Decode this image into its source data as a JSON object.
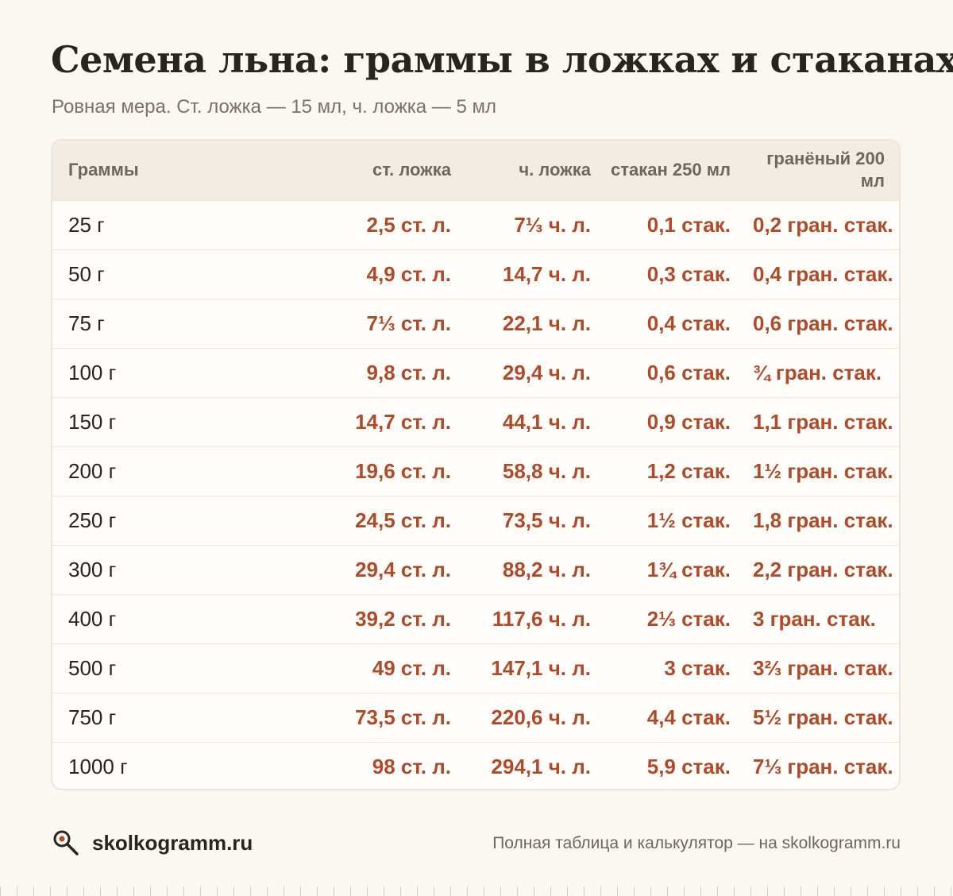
{
  "header": {
    "title": "Семена льна: граммы в ложках и стаканах",
    "subtitle": "Ровная мера. Ст. ложка — 15 мл, ч. ложка — 5 мл"
  },
  "table": {
    "columns": [
      "Граммы",
      "ст. ложка",
      "ч. ложка",
      "стакан 250 мл",
      "гранёный 200 мл"
    ],
    "rows": [
      [
        "25 г",
        "2,5 ст. л.",
        "7⅓ ч. л.",
        "0,1 стак.",
        "0,2 гран. стак."
      ],
      [
        "50 г",
        "4,9 ст. л.",
        "14,7 ч. л.",
        "0,3 стак.",
        "0,4 гран. стак."
      ],
      [
        "75 г",
        "7⅓ ст. л.",
        "22,1 ч. л.",
        "0,4 стак.",
        "0,6 гран. стак."
      ],
      [
        "100 г",
        "9,8 ст. л.",
        "29,4 ч. л.",
        "0,6 стак.",
        "¾ гран. стак."
      ],
      [
        "150 г",
        "14,7 ст. л.",
        "44,1 ч. л.",
        "0,9 стак.",
        "1,1 гран. стак."
      ],
      [
        "200 г",
        "19,6 ст. л.",
        "58,8 ч. л.",
        "1,2 стак.",
        "1½ гран. стак."
      ],
      [
        "250 г",
        "24,5 ст. л.",
        "73,5 ч. л.",
        "1½ стак.",
        "1,8 гран. стак."
      ],
      [
        "300 г",
        "29,4 ст. л.",
        "88,2 ч. л.",
        "1¾ стак.",
        "2,2 гран. стак."
      ],
      [
        "400 г",
        "39,2 ст. л.",
        "117,6 ч. л.",
        "2⅓ стак.",
        "3 гран. стак."
      ],
      [
        "500 г",
        "49 ст. л.",
        "147,1 ч. л.",
        "3 стак.",
        "3⅔ гран. стак."
      ],
      [
        "750 г",
        "73,5 ст. л.",
        "220,6 ч. л.",
        "4,4 стак.",
        "5½ гран. стак."
      ],
      [
        "1000 г",
        "98 ст. л.",
        "294,1 ч. л.",
        "5,9 стак.",
        "7⅓ гран. стак."
      ]
    ]
  },
  "footer": {
    "brand": "skolkogramm.ru",
    "note": "Полная таблица и калькулятор — на skolkogramm.ru",
    "logo_icon": "magnifier-icon"
  },
  "colors": {
    "accent": "#b04b2a",
    "background": "#fbf8f1",
    "header_row": "#f2ece2"
  }
}
